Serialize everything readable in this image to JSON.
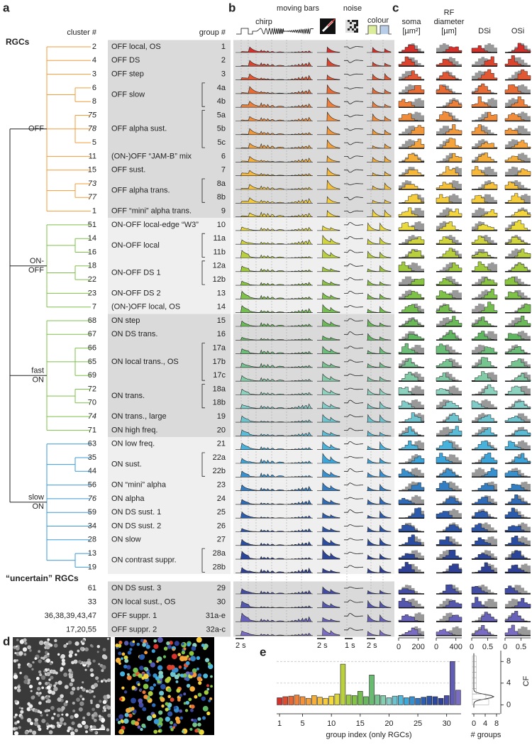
{
  "labels": [
    "a",
    "b",
    "c",
    "d",
    "e"
  ],
  "headers": {
    "cluster": "cluster #",
    "group": "group #",
    "rgcs": "RGCs",
    "chirp": "chirp",
    "moving_bars": "moving bars",
    "noise": "noise",
    "colour": "colour"
  },
  "palette": [
    "#d7302a",
    "#f0843a",
    "#f7b23a",
    "#f4dc3c",
    "#8cc63f",
    "#5fb760",
    "#8fd3c3",
    "#3fb0e0",
    "#2c5fb0",
    "#2b3f95",
    "#7a6cc4"
  ],
  "sections": [
    {
      "label": [
        "OFF"
      ],
      "color": "#f39c3c",
      "groups": [
        {
          "name": "OFF local, OS",
          "rows": [
            {
              "cluster": "2",
              "group": "1"
            }
          ]
        },
        {
          "name": "OFF DS",
          "rows": [
            {
              "cluster": "4",
              "group": "2"
            }
          ]
        },
        {
          "name": "OFF step",
          "rows": [
            {
              "cluster": "3",
              "group": "3"
            }
          ]
        },
        {
          "name": "OFF slow",
          "rows": [
            {
              "cluster": "6",
              "group": "4a"
            },
            {
              "cluster": "8",
              "group": "4b"
            }
          ]
        },
        {
          "name": "OFF alpha sust.",
          "rows": [
            {
              "cluster": "75",
              "group": "5a",
              "italic": true
            },
            {
              "cluster": "78",
              "group": "5b",
              "italic": true
            },
            {
              "cluster": "5",
              "group": "5c"
            }
          ]
        },
        {
          "name": "(ON-)OFF “JAM-B” mix",
          "rows": [
            {
              "cluster": "11",
              "group": "6"
            }
          ]
        },
        {
          "name": "OFF sust.",
          "rows": [
            {
              "cluster": "15",
              "group": "7"
            }
          ]
        },
        {
          "name": "OFF alpha trans.",
          "rows": [
            {
              "cluster": "73",
              "group": "8a",
              "italic": true
            },
            {
              "cluster": "77",
              "group": "8b",
              "italic": true
            }
          ]
        },
        {
          "name": "OFF “mini” alpha trans.",
          "rows": [
            {
              "cluster": "1",
              "group": "9"
            }
          ]
        }
      ]
    },
    {
      "label": [
        "ON-",
        "OFF"
      ],
      "color": "#7dc04a",
      "groups": [
        {
          "name": "ON-OFF local-edge “W3”",
          "rows": [
            {
              "cluster": "51",
              "group": "10"
            }
          ]
        },
        {
          "name": "ON-OFF local",
          "rows": [
            {
              "cluster": "14",
              "group": "11a"
            },
            {
              "cluster": "16",
              "group": "11b"
            }
          ]
        },
        {
          "name": "ON-OFF DS 1",
          "rows": [
            {
              "cluster": "18",
              "group": "12a"
            },
            {
              "cluster": "22",
              "group": "12b"
            }
          ]
        },
        {
          "name": "ON-OFF DS 2",
          "rows": [
            {
              "cluster": "23",
              "group": "13"
            }
          ]
        },
        {
          "name": "(ON-)OFF local, OS",
          "rows": [
            {
              "cluster": "7",
              "group": "14"
            }
          ]
        }
      ]
    },
    {
      "label": [
        "fast",
        "ON"
      ],
      "color": "#7dc04a",
      "groups": [
        {
          "name": "ON step",
          "rows": [
            {
              "cluster": "68",
              "group": "15"
            }
          ]
        },
        {
          "name": "ON DS trans.",
          "rows": [
            {
              "cluster": "67",
              "group": "16"
            }
          ]
        },
        {
          "name": "ON local trans., OS",
          "rows": [
            {
              "cluster": "66",
              "group": "17a"
            },
            {
              "cluster": "65",
              "group": "17b"
            },
            {
              "cluster": "69",
              "group": "17c"
            }
          ]
        },
        {
          "name": "ON trans.",
          "rows": [
            {
              "cluster": "72",
              "group": "18a"
            },
            {
              "cluster": "70",
              "group": "18b"
            }
          ]
        },
        {
          "name": "ON trans., large",
          "rows": [
            {
              "cluster": "74",
              "group": "19",
              "italic": true
            }
          ]
        },
        {
          "name": "ON high freq.",
          "rows": [
            {
              "cluster": "71",
              "group": "20"
            }
          ]
        }
      ]
    },
    {
      "label": [
        "slow",
        "ON"
      ],
      "color": "#3b9bd6",
      "groups": [
        {
          "name": "ON low freq.",
          "rows": [
            {
              "cluster": "63",
              "group": "21"
            }
          ]
        },
        {
          "name": "ON sust.",
          "rows": [
            {
              "cluster": "35",
              "group": "22a"
            },
            {
              "cluster": "44",
              "group": "22b"
            }
          ]
        },
        {
          "name": "ON “mini” alpha",
          "rows": [
            {
              "cluster": "56",
              "group": "23"
            }
          ]
        },
        {
          "name": "ON alpha",
          "rows": [
            {
              "cluster": "76",
              "group": "24",
              "italic": true
            }
          ]
        },
        {
          "name": "ON DS sust. 1",
          "rows": [
            {
              "cluster": "59",
              "group": "25"
            }
          ]
        },
        {
          "name": "ON DS sust. 2",
          "rows": [
            {
              "cluster": "34",
              "group": "26"
            }
          ]
        },
        {
          "name": "ON slow",
          "rows": [
            {
              "cluster": "28",
              "group": "27"
            }
          ]
        },
        {
          "name": "ON contrast suppr.",
          "rows": [
            {
              "cluster": "13",
              "group": "28a"
            },
            {
              "cluster": "19",
              "group": "28b"
            }
          ]
        }
      ]
    }
  ],
  "uncertain": {
    "title": "“uncertain” RGCs",
    "groups": [
      {
        "name": "ON DS sust. 3",
        "rows": [
          {
            "cluster": "61",
            "group": "29"
          }
        ]
      },
      {
        "name": "ON local sust., OS",
        "rows": [
          {
            "cluster": "33",
            "group": "30"
          }
        ]
      },
      {
        "name": "OFF suppr. 1",
        "rows": [
          {
            "cluster": "36,38,39,43,47",
            "group": "31a-e"
          }
        ]
      },
      {
        "name": "OFF suppr. 2",
        "rows": [
          {
            "cluster": "17,20,55",
            "group": "32a-c"
          }
        ]
      }
    ]
  },
  "trace_scale_bars": [
    "2 s",
    "2 s",
    "1 s",
    "2 s"
  ],
  "histogram_columns": [
    {
      "title": [
        "soma",
        "[µm²]"
      ],
      "xlim": [
        0,
        260
      ],
      "xticks": [
        0,
        200
      ]
    },
    {
      "title": [
        "RF",
        "diameter",
        "[µm]"
      ],
      "xlim": [
        0,
        520
      ],
      "xticks": [
        0,
        400
      ]
    },
    {
      "title": [
        "DSi"
      ],
      "xlim": [
        0,
        0.8
      ],
      "xticks": [
        0,
        0.5
      ]
    },
    {
      "title": [
        "OSi"
      ],
      "xlim": [
        0,
        0.8
      ],
      "xticks": [
        0,
        0.5
      ]
    }
  ],
  "chart_data": {
    "type": "bar",
    "xlabel": "group index (only RGCs)",
    "ylabel": "CF",
    "x": [
      1,
      2,
      3,
      4,
      5,
      6,
      7,
      8,
      9,
      10,
      11,
      12,
      13,
      14,
      15,
      16,
      17,
      18,
      19,
      20,
      21,
      22,
      23,
      24,
      25,
      26,
      27,
      28,
      29,
      30,
      31,
      32
    ],
    "values": [
      1.3,
      1.5,
      1.6,
      1.8,
      1.5,
      1.2,
      1.7,
      1.4,
      1.2,
      1.6,
      2,
      7.5,
      1.8,
      1.7,
      2.5,
      1.5,
      5.5,
      1.8,
      1.7,
      1.3,
      1.6,
      1.7,
      1.3,
      1.5,
      1.2,
      1.4,
      1.6,
      1.5,
      1.2,
      1.7,
      8,
      2.7
    ],
    "xlim": [
      0.5,
      32.5
    ],
    "ylim": [
      -1,
      10
    ],
    "xticks": [
      1,
      5,
      10,
      15,
      20,
      25,
      30
    ],
    "yticks": [
      0,
      4,
      8
    ],
    "grid": true,
    "side": {
      "xlabel": "# groups",
      "xlim": [
        -0.75,
        9.25
      ],
      "xticks": [
        0,
        4,
        8
      ]
    }
  }
}
